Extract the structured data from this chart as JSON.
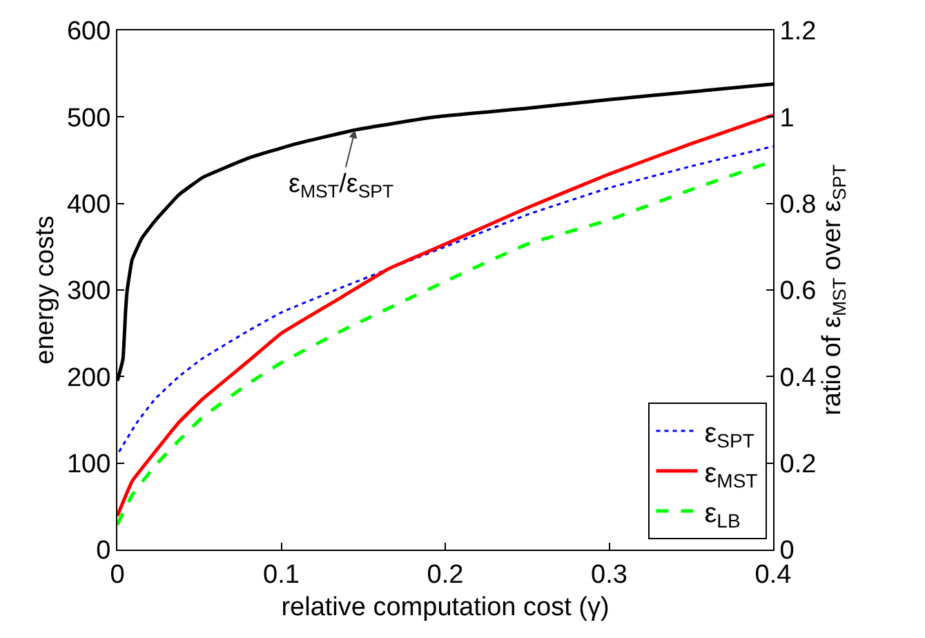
{
  "chart_data": {
    "type": "line",
    "xlabel": "relative computation cost (γ)",
    "ylabel": "energy costs",
    "y2label": "ratio of ε$_{MST}$ over ε$_{SPT}$",
    "xlim": [
      0,
      0.4
    ],
    "xticks": [
      0,
      0.1,
      0.2,
      0.3,
      0.4
    ],
    "ylim": [
      0,
      600
    ],
    "yticks": [
      0,
      100,
      200,
      300,
      400,
      500,
      600
    ],
    "y2lim": [
      0,
      1.2
    ],
    "y2ticks": [
      0,
      0.2,
      0.4,
      0.6,
      0.8,
      1,
      1.2
    ],
    "grid": false,
    "legend": "bottom right",
    "marker": "none",
    "annotations": [
      {
        "text": "ε$_{MST}$/ε$_{SPT}$",
        "x": 0.145,
        "y": 485
      }
    ],
    "series": [
      {
        "name": "ε$_{SPT}$",
        "color": "#0000ff",
        "line_style": "dotted",
        "x": [
          0.001,
          0.012,
          0.023,
          0.0375,
          0.052,
          0.08,
          0.1,
          0.137,
          0.2,
          0.25,
          0.3,
          0.35,
          0.4
        ],
        "values": [
          113,
          147,
          174,
          200,
          221,
          253,
          274,
          303,
          350,
          387,
          418,
          443,
          466
        ]
      },
      {
        "name": "ε$_{MST}$",
        "color": "#ff0000",
        "line_style": "solid",
        "x": [
          0,
          0.009,
          0.023,
          0.0375,
          0.052,
          0.08,
          0.1,
          0.137,
          0.165,
          0.2,
          0.25,
          0.3,
          0.35,
          0.4
        ],
        "values": [
          39,
          79,
          113,
          147,
          174,
          218,
          250,
          292,
          324,
          353,
          395,
          434,
          469,
          502
        ]
      },
      {
        "name": "ε$_{LB}$",
        "color": "#00ff00",
        "line_style": "dashed",
        "x": [
          0,
          0.009,
          0.023,
          0.0375,
          0.052,
          0.08,
          0.1,
          0.137,
          0.2,
          0.25,
          0.3,
          0.35,
          0.4
        ],
        "values": [
          29,
          63,
          97,
          126,
          153,
          192,
          216,
          253,
          310,
          353,
          381,
          416,
          449
        ]
      },
      {
        "color": "#000000",
        "line_style": "solid",
        "axis": "y2",
        "x": [
          0,
          0.0034,
          0.005,
          0.006,
          0.009,
          0.015,
          0.023,
          0.0375,
          0.052,
          0.08,
          0.108,
          0.145,
          0.194,
          0.25,
          0.3,
          0.35,
          0.4
        ],
        "values": [
          0.39,
          0.44,
          0.55,
          0.6,
          0.67,
          0.72,
          0.76,
          0.82,
          0.86,
          0.905,
          0.937,
          0.97,
          1.0,
          1.02,
          1.04,
          1.058,
          1.076
        ]
      }
    ]
  }
}
